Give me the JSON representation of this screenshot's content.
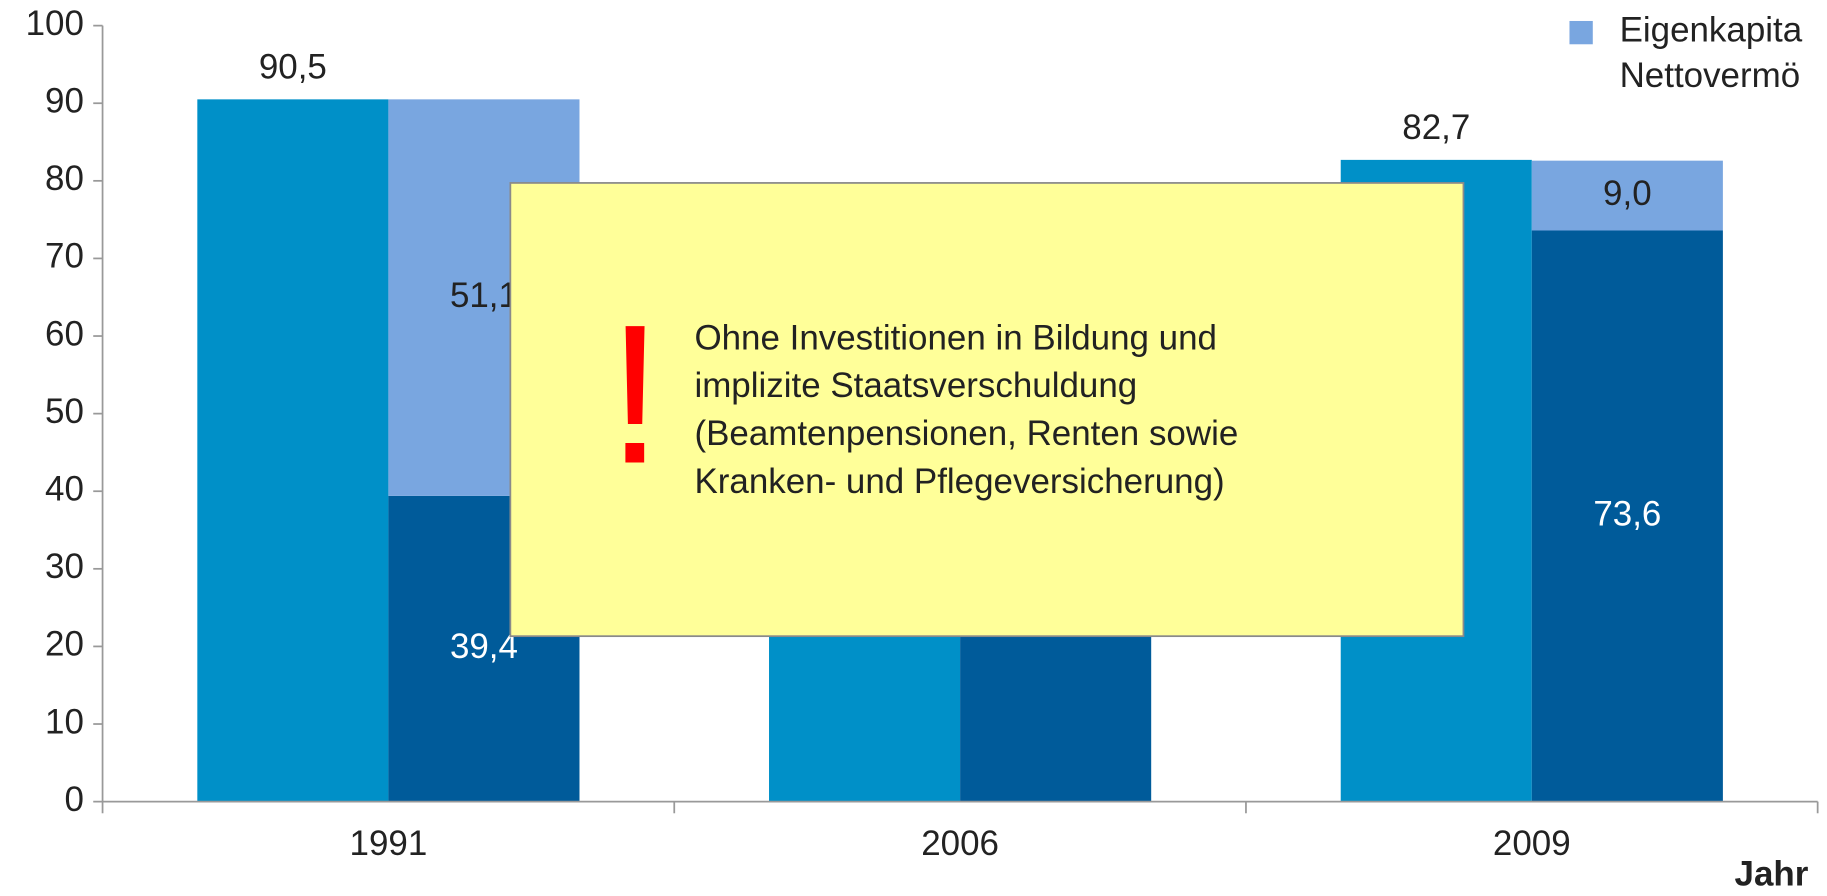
{
  "chart_data": {
    "type": "bar",
    "categories": [
      "1991",
      "2006",
      "2009"
    ],
    "series": [
      {
        "color": "#0090c8",
        "values": [
          90.5,
          60,
          82.7
        ],
        "value_labels": [
          "90,5",
          null,
          "82,7"
        ]
      },
      {
        "color": "#005b9a",
        "values": [
          39.4,
          55,
          73.6
        ],
        "value_labels": [
          "39,4",
          null,
          "73,6"
        ]
      },
      {
        "name": "Eigenkapita\nNettovermö",
        "color": "#79a6e0",
        "values": [
          51.1,
          5,
          9.0
        ],
        "value_labels": [
          "51,1",
          null,
          "9,0"
        ]
      }
    ],
    "ylim": [
      0,
      100
    ],
    "yticks": [
      0,
      10,
      20,
      30,
      40,
      50,
      60,
      70,
      80,
      90,
      100
    ],
    "xlabel": "Jahr",
    "legend": "top-right",
    "annotation": {
      "icon": "!",
      "lines": [
        "Ohne Investitionen in Bildung und",
        "implizite Staatsverschuldung",
        "(Beamtenpensionen, Renten sowie",
        "Kranken- und Pflegeversicherung)"
      ]
    }
  }
}
